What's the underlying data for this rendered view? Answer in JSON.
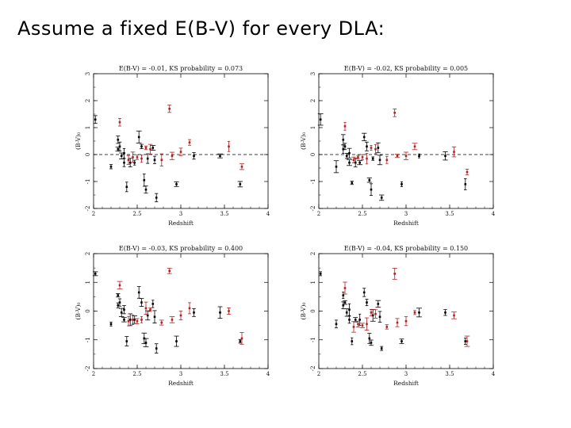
{
  "slide": {
    "title": "Assume a fixed E(B-V) for every DLA:"
  },
  "chart_data": [
    {
      "type": "scatter",
      "title": "E(B-V) = -0.01, KS probability = 0.073",
      "xlabel": "Redshift",
      "ylabel": "(B-V)₀",
      "xlim": [
        2,
        4
      ],
      "ylim": [
        -2,
        3
      ],
      "xticks": [
        "2",
        "2.5",
        "3",
        "3.5",
        "4"
      ],
      "yticks": [
        "-2",
        "-1",
        "0",
        "1",
        "2",
        "3"
      ],
      "reference_line": 0,
      "series": [
        {
          "color": "#000000",
          "points": [
            [
              2.02,
              1.3
            ],
            [
              2.2,
              -0.45
            ],
            [
              2.28,
              0.55
            ],
            [
              2.28,
              0.2
            ],
            [
              2.3,
              0.3
            ],
            [
              2.32,
              -0.05
            ],
            [
              2.35,
              0.05
            ],
            [
              2.35,
              -0.3
            ],
            [
              2.38,
              -1.2
            ],
            [
              2.42,
              -0.3
            ],
            [
              2.47,
              -0.3
            ],
            [
              2.52,
              0.65
            ],
            [
              2.55,
              0.3
            ],
            [
              2.58,
              -0.95
            ],
            [
              2.6,
              -1.3
            ],
            [
              2.62,
              -0.15
            ],
            [
              2.68,
              0.25
            ],
            [
              2.7,
              -0.2
            ],
            [
              2.72,
              -1.6
            ],
            [
              2.95,
              -1.1
            ],
            [
              3.15,
              -0.05
            ],
            [
              3.45,
              -0.05
            ],
            [
              3.68,
              -1.1
            ]
          ]
        },
        {
          "color": "#b22222",
          "points": [
            [
              2.3,
              1.2
            ],
            [
              2.4,
              -0.2
            ],
            [
              2.45,
              -0.1
            ],
            [
              2.5,
              -0.1
            ],
            [
              2.55,
              -0.15
            ],
            [
              2.6,
              0.25
            ],
            [
              2.65,
              0.2
            ],
            [
              2.78,
              -0.2
            ],
            [
              2.87,
              1.7
            ],
            [
              2.9,
              -0.05
            ],
            [
              3.0,
              0.1
            ],
            [
              3.1,
              0.45
            ],
            [
              3.55,
              0.3
            ],
            [
              3.7,
              -0.45
            ]
          ]
        }
      ]
    },
    {
      "type": "scatter",
      "title": "E(B-V) = -0.02, KS probability = 0.005",
      "xlabel": "Redshift",
      "ylabel": "(B-V)₀",
      "xlim": [
        2,
        4
      ],
      "ylim": [
        -2,
        3
      ],
      "xticks": [
        "2",
        "2.5",
        "3",
        "3.5",
        "4"
      ],
      "yticks": [
        "-2",
        "-1",
        "0",
        "1",
        "2",
        "3"
      ],
      "reference_line": 0,
      "series": [
        {
          "color": "#000000",
          "points": [
            [
              2.02,
              1.3
            ],
            [
              2.2,
              -0.45
            ],
            [
              2.28,
              0.55
            ],
            [
              2.28,
              0.2
            ],
            [
              2.3,
              0.3
            ],
            [
              2.32,
              -0.05
            ],
            [
              2.35,
              0.05
            ],
            [
              2.35,
              -0.3
            ],
            [
              2.38,
              -1.05
            ],
            [
              2.42,
              -0.3
            ],
            [
              2.47,
              -0.3
            ],
            [
              2.52,
              0.65
            ],
            [
              2.55,
              0.3
            ],
            [
              2.58,
              -0.95
            ],
            [
              2.6,
              -1.3
            ],
            [
              2.62,
              -0.15
            ],
            [
              2.68,
              0.25
            ],
            [
              2.7,
              -0.2
            ],
            [
              2.72,
              -1.6
            ],
            [
              2.95,
              -1.1
            ],
            [
              3.15,
              -0.05
            ],
            [
              3.45,
              -0.05
            ],
            [
              3.68,
              -1.1
            ]
          ]
        },
        {
          "color": "#b22222",
          "points": [
            [
              2.3,
              1.05
            ],
            [
              2.4,
              -0.2
            ],
            [
              2.45,
              -0.1
            ],
            [
              2.5,
              -0.1
            ],
            [
              2.55,
              -0.15
            ],
            [
              2.6,
              0.25
            ],
            [
              2.65,
              0.2
            ],
            [
              2.78,
              -0.2
            ],
            [
              2.87,
              1.55
            ],
            [
              2.9,
              -0.05
            ],
            [
              3.0,
              -0.05
            ],
            [
              3.1,
              0.3
            ],
            [
              3.55,
              0.1
            ],
            [
              3.7,
              -0.65
            ]
          ]
        }
      ]
    },
    {
      "type": "scatter",
      "title": "E(B-V) = -0.03, KS probability = 0.400",
      "xlabel": "Redshift",
      "ylabel": "(B-V)₀",
      "xlim": [
        2,
        4
      ],
      "ylim": [
        -2,
        2
      ],
      "xticks": [
        "2",
        "2.5",
        "3",
        "3.5",
        "4"
      ],
      "yticks": [
        "-2",
        "-1",
        "0",
        "1",
        "2"
      ],
      "reference_line": null,
      "series": [
        {
          "color": "#000000",
          "points": [
            [
              2.02,
              1.3
            ],
            [
              2.2,
              -0.45
            ],
            [
              2.28,
              0.2
            ],
            [
              2.28,
              0.55
            ],
            [
              2.3,
              0.3
            ],
            [
              2.32,
              -0.05
            ],
            [
              2.35,
              0.05
            ],
            [
              2.35,
              -0.3
            ],
            [
              2.38,
              -1.05
            ],
            [
              2.42,
              -0.3
            ],
            [
              2.47,
              -0.3
            ],
            [
              2.52,
              0.65
            ],
            [
              2.55,
              0.3
            ],
            [
              2.58,
              -0.95
            ],
            [
              2.6,
              -1.1
            ],
            [
              2.62,
              -0.15
            ],
            [
              2.68,
              0.25
            ],
            [
              2.7,
              -0.2
            ],
            [
              2.72,
              -1.3
            ],
            [
              2.95,
              -1.05
            ],
            [
              3.15,
              -0.05
            ],
            [
              3.45,
              -0.05
            ],
            [
              3.68,
              -1.05
            ]
          ]
        },
        {
          "color": "#b22222",
          "points": [
            [
              2.3,
              0.9
            ],
            [
              2.4,
              -0.35
            ],
            [
              2.45,
              -0.3
            ],
            [
              2.5,
              -0.35
            ],
            [
              2.55,
              -0.3
            ],
            [
              2.6,
              0.1
            ],
            [
              2.65,
              0.05
            ],
            [
              2.78,
              -0.4
            ],
            [
              2.87,
              1.4
            ],
            [
              2.9,
              -0.3
            ],
            [
              3.0,
              -0.15
            ],
            [
              3.1,
              0.1
            ],
            [
              3.55,
              0.0
            ],
            [
              3.7,
              -0.95
            ]
          ]
        }
      ]
    },
    {
      "type": "scatter",
      "title": "E(B-V) = -0.04, KS probability = 0.150",
      "xlabel": "Redshift",
      "ylabel": "(B-V)₀",
      "xlim": [
        2,
        4
      ],
      "ylim": [
        -2,
        2
      ],
      "xticks": [
        "2",
        "2.5",
        "3",
        "3.5",
        "4"
      ],
      "yticks": [
        "-2",
        "-1",
        "0",
        "1",
        "2"
      ],
      "reference_line": null,
      "series": [
        {
          "color": "#000000",
          "points": [
            [
              2.02,
              1.3
            ],
            [
              2.2,
              -0.45
            ],
            [
              2.28,
              0.2
            ],
            [
              2.28,
              0.55
            ],
            [
              2.3,
              0.3
            ],
            [
              2.32,
              -0.05
            ],
            [
              2.35,
              0.05
            ],
            [
              2.35,
              -0.3
            ],
            [
              2.38,
              -1.05
            ],
            [
              2.42,
              -0.3
            ],
            [
              2.47,
              -0.3
            ],
            [
              2.52,
              0.65
            ],
            [
              2.55,
              0.3
            ],
            [
              2.58,
              -0.95
            ],
            [
              2.6,
              -1.1
            ],
            [
              2.62,
              -0.15
            ],
            [
              2.68,
              0.25
            ],
            [
              2.7,
              -0.2
            ],
            [
              2.72,
              -1.3
            ],
            [
              2.95,
              -1.05
            ],
            [
              3.15,
              -0.05
            ],
            [
              3.45,
              -0.05
            ],
            [
              3.68,
              -1.05
            ]
          ]
        },
        {
          "color": "#b22222",
          "points": [
            [
              2.3,
              0.8
            ],
            [
              2.4,
              -0.55
            ],
            [
              2.45,
              -0.45
            ],
            [
              2.5,
              -0.5
            ],
            [
              2.55,
              -0.45
            ],
            [
              2.6,
              -0.05
            ],
            [
              2.65,
              -0.1
            ],
            [
              2.78,
              -0.55
            ],
            [
              2.87,
              1.3
            ],
            [
              2.9,
              -0.4
            ],
            [
              3.0,
              -0.35
            ],
            [
              3.1,
              -0.05
            ],
            [
              3.55,
              -0.15
            ],
            [
              3.7,
              -1.05
            ]
          ]
        }
      ]
    }
  ]
}
